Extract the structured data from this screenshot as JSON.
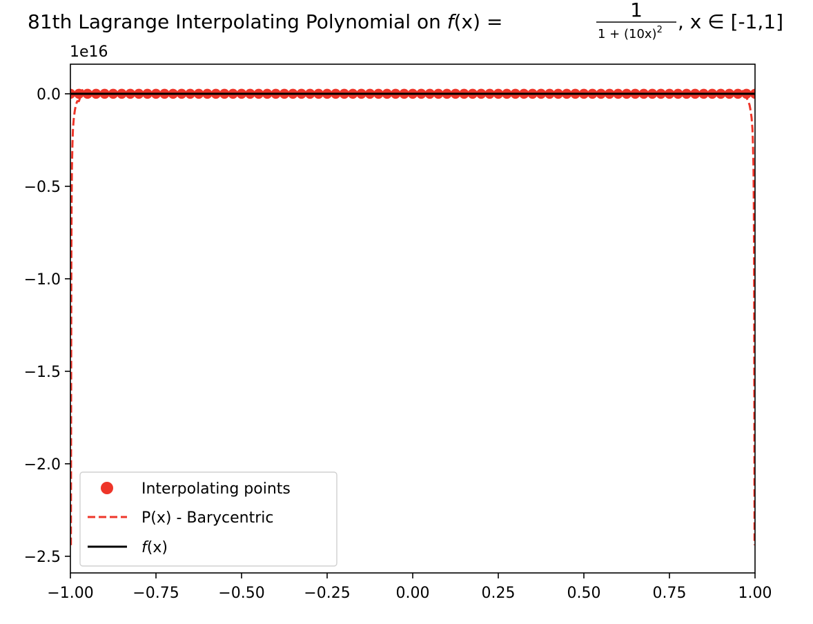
{
  "chart_data": {
    "type": "line",
    "title": {
      "prefix": "81th Lagrange Interpolating Polynomial on ",
      "func_italic": "f",
      "func_paren": "(x)",
      "equals": " = ",
      "numerator": "1",
      "denominator": "1 + (10x)",
      "denominator_exp": "2",
      "suffix": ", x ∈ [-1,1]"
    },
    "offset_label": "1e16",
    "xlim": [
      -1.0,
      1.0
    ],
    "ylim": [
      -2.59,
      0.16
    ],
    "y_scale_factor": 1e+16,
    "x_ticks": [
      {
        "value": -1.0,
        "label": "−1.00"
      },
      {
        "value": -0.75,
        "label": "−0.75"
      },
      {
        "value": -0.5,
        "label": "−0.50"
      },
      {
        "value": -0.25,
        "label": "−0.25"
      },
      {
        "value": 0.0,
        "label": "0.00"
      },
      {
        "value": 0.25,
        "label": "0.25"
      },
      {
        "value": 0.5,
        "label": "0.50"
      },
      {
        "value": 0.75,
        "label": "0.75"
      },
      {
        "value": 1.0,
        "label": "1.00"
      }
    ],
    "y_ticks": [
      {
        "value": 0.0,
        "label": "0.0"
      },
      {
        "value": -0.5,
        "label": "−0.5"
      },
      {
        "value": -1.0,
        "label": "−1.0"
      },
      {
        "value": -1.5,
        "label": "−1.5"
      },
      {
        "value": -2.0,
        "label": "−2.0"
      },
      {
        "value": -2.5,
        "label": "−2.5"
      }
    ],
    "grid": false,
    "legend": {
      "placement": "lower-left",
      "entries": [
        {
          "label": "Interpolating points",
          "kind": "marker",
          "color": "#ee3529"
        },
        {
          "label": "P(x) - Barycentric",
          "kind": "dashed",
          "color": "#ee3529"
        },
        {
          "label_italic": "f",
          "label_rest": "(x)",
          "kind": "solid",
          "color": "#000000"
        }
      ]
    },
    "series": [
      {
        "name": "Interpolating points",
        "kind": "scatter",
        "color": "#ee3529",
        "n_points": 81,
        "x_range": [
          -1.0,
          1.0
        ],
        "y": 0.0
      },
      {
        "name": "P(x) - Barycentric",
        "kind": "dashed-line",
        "color": "#ee3529",
        "x": [
          -0.9985,
          -0.9982,
          -0.9978,
          -0.9975,
          -0.9972,
          -0.9965,
          -0.9955,
          -0.994,
          -0.9925,
          -0.99,
          -0.987,
          -0.984,
          -0.98,
          -0.975,
          -0.97,
          -0.965,
          -0.96,
          -0.95,
          0.0,
          0.95,
          0.96,
          0.965,
          0.97,
          0.975,
          0.98,
          0.984,
          0.987,
          0.99,
          0.9925,
          0.994,
          0.9955,
          0.9965,
          0.9972,
          0.9975,
          0.9978,
          0.9982,
          0.9985
        ],
        "y": [
          -2.44,
          -2.1,
          -1.6,
          -1.2,
          -0.9,
          -0.6,
          -0.4,
          -0.27,
          -0.19,
          -0.13,
          -0.09,
          -0.06,
          -0.04,
          -0.04,
          -0.01,
          0.02,
          0.0,
          0.0,
          0.0,
          0.0,
          0.0,
          0.02,
          0.01,
          -0.02,
          -0.04,
          -0.06,
          -0.09,
          -0.13,
          -0.19,
          -0.27,
          -0.4,
          -0.6,
          -0.9,
          -1.2,
          -1.6,
          -2.1,
          -2.44
        ]
      },
      {
        "name": "f(x)",
        "kind": "solid-line",
        "color": "#000000",
        "x": [
          -1.0,
          1.0
        ],
        "y": [
          0.0,
          0.0
        ]
      }
    ]
  }
}
